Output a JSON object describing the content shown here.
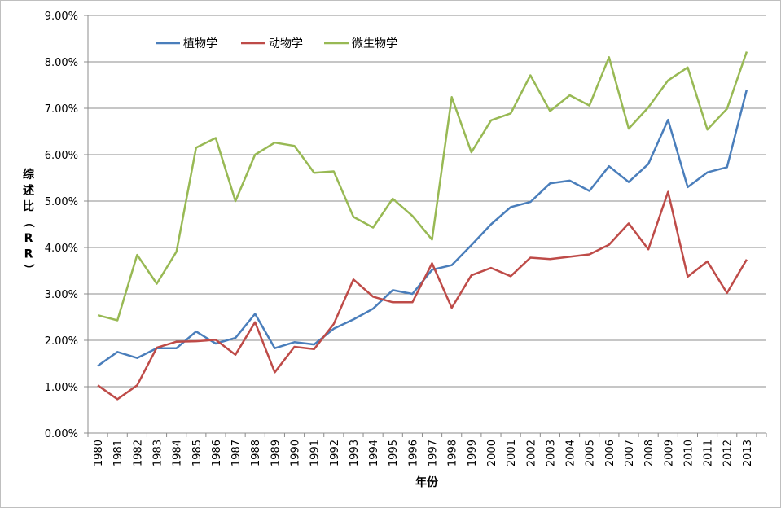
{
  "chart_data": {
    "type": "line",
    "xlabel": "年份",
    "ylabel": "综述比（RR）",
    "ylim": [
      0,
      0.09
    ],
    "y_ticks": [
      "0.00%",
      "1.00%",
      "2.00%",
      "3.00%",
      "4.00%",
      "5.00%",
      "6.00%",
      "7.00%",
      "8.00%",
      "9.00%"
    ],
    "grid": "horizontal",
    "legend_position": "top-left",
    "x": [
      "1980",
      "1981",
      "1982",
      "1983",
      "1984",
      "1985",
      "1986",
      "1987",
      "1988",
      "1989",
      "1990",
      "1991",
      "1992",
      "1993",
      "1994",
      "1995",
      "1996",
      "1997",
      "1998",
      "1999",
      "2000",
      "2001",
      "2002",
      "2003",
      "2004",
      "2005",
      "2006",
      "2007",
      "2008",
      "2009",
      "2010",
      "2011",
      "2012",
      "2013"
    ],
    "series": [
      {
        "name": "植物学",
        "color": "#4a7ebb",
        "values": [
          0.0145,
          0.0175,
          0.0162,
          0.0183,
          0.0183,
          0.0219,
          0.0193,
          0.0205,
          0.0257,
          0.0183,
          0.0196,
          0.0191,
          0.0225,
          0.0245,
          0.0268,
          0.0308,
          0.03,
          0.0352,
          0.0362,
          0.0405,
          0.045,
          0.0487,
          0.0498,
          0.0538,
          0.0544,
          0.0522,
          0.0575,
          0.0541,
          0.058,
          0.0675,
          0.053,
          0.0562,
          0.0573,
          0.074
        ]
      },
      {
        "name": "动物学",
        "color": "#be4b48",
        "values": [
          0.0103,
          0.0073,
          0.0103,
          0.0184,
          0.0197,
          0.0198,
          0.0201,
          0.0169,
          0.0239,
          0.0131,
          0.0186,
          0.0181,
          0.0235,
          0.0331,
          0.0294,
          0.0282,
          0.0282,
          0.0366,
          0.027,
          0.034,
          0.0356,
          0.0338,
          0.0378,
          0.0375,
          0.038,
          0.0385,
          0.0406,
          0.0452,
          0.0396,
          0.052,
          0.0337,
          0.037,
          0.0302,
          0.0374
        ]
      },
      {
        "name": "微生物学",
        "color": "#98b954",
        "values": [
          0.0254,
          0.0243,
          0.0384,
          0.0322,
          0.0391,
          0.0615,
          0.0636,
          0.05,
          0.06,
          0.0626,
          0.0619,
          0.0561,
          0.0564,
          0.0466,
          0.0443,
          0.0505,
          0.0468,
          0.0417,
          0.0724,
          0.0605,
          0.0674,
          0.0689,
          0.0771,
          0.0694,
          0.0728,
          0.0706,
          0.081,
          0.0656,
          0.0702,
          0.076,
          0.0788,
          0.0654,
          0.0699,
          0.0822
        ]
      }
    ]
  }
}
